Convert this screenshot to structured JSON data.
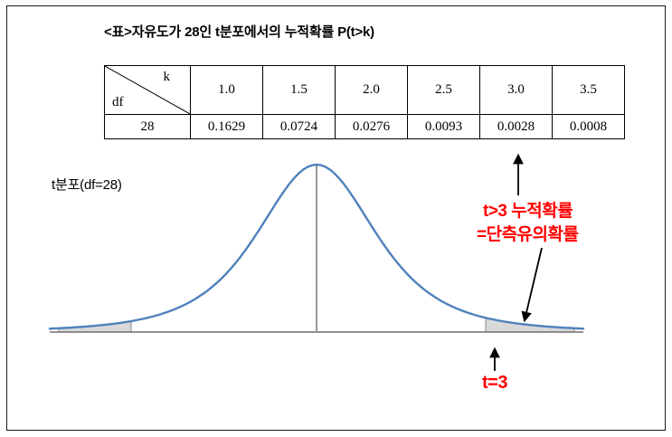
{
  "title": "<표>자유도가 28인 t분포에서의 누적확률 P(t>k)",
  "table": {
    "corner_top_right": "k",
    "corner_bottom_left": "df",
    "k_values": [
      "1.0",
      "1.5",
      "2.0",
      "2.5",
      "3.0",
      "3.5"
    ],
    "df_value": "28",
    "probabilities": [
      "0.1629",
      "0.0724",
      "0.0276",
      "0.0093",
      "0.0028",
      "0.0008"
    ]
  },
  "plot": {
    "label": "t분포(df=28)"
  },
  "annotations": {
    "tail_note_line1": "t>3 누적확률",
    "tail_note_line2": "=단측유의확률",
    "t_marker_label": "t=3"
  },
  "colors": {
    "curve": "#4f81bd",
    "shade": "#d9d9d9",
    "shade_edge": "#8c8c8c",
    "axis": "#6e6e6e",
    "center_line": "#555555",
    "annotation_red": "#ff0000",
    "arrow": "#000000"
  },
  "chart_data": {
    "type": "area",
    "title": "t분포(df=28)",
    "distribution": "t",
    "df": 28,
    "x_range": [
      -4.5,
      4.5
    ],
    "center_line_x": 0,
    "legend": "off",
    "grid": "off",
    "shaded_regions": [
      {
        "from": -4.3,
        "to": -3.1,
        "meaning": "left tail"
      },
      {
        "from": 3.0,
        "to": 4.3,
        "meaning": "P(t>3) = 0.0028 = 단측유의확률"
      }
    ],
    "table": {
      "k": [
        1.0,
        1.5,
        2.0,
        2.5,
        3.0,
        3.5
      ],
      "P_t_greater_than_k": [
        0.1629,
        0.0724,
        0.0276,
        0.0093,
        0.0028,
        0.0008
      ],
      "df": 28
    }
  }
}
